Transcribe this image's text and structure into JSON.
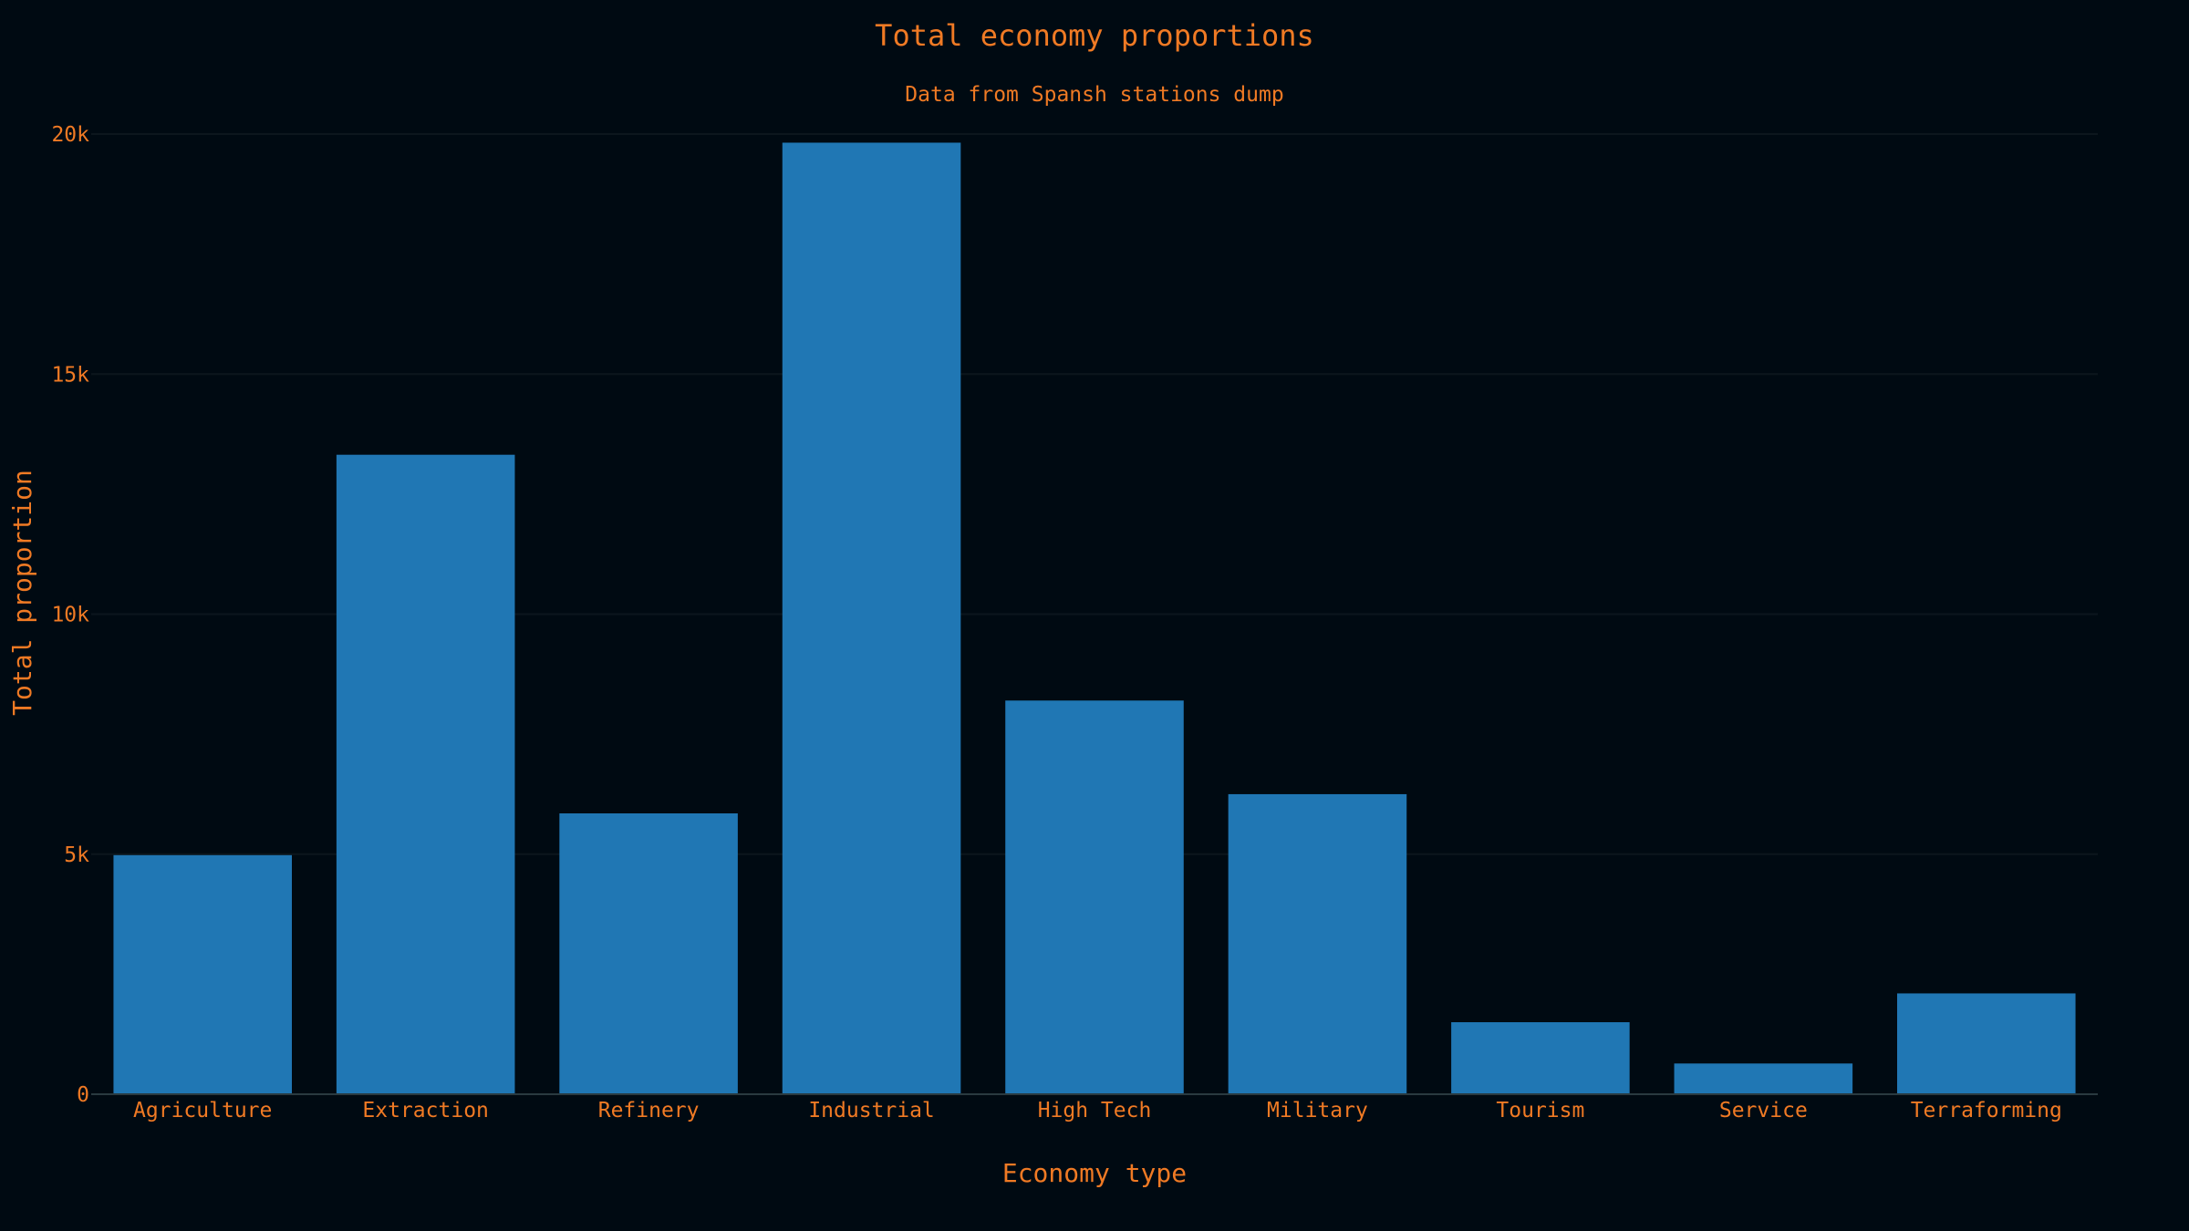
{
  "colors": {
    "background": "#000a12",
    "text": "#f07a24",
    "bar": "#2077b4",
    "grid": "#0c161d",
    "axis_line": "#2a3a40"
  },
  "chart_data": {
    "type": "bar",
    "title": "Total economy proportions",
    "subtitle": "Data from Spansh stations dump",
    "xlabel": "Economy type",
    "ylabel": "Total proportion",
    "ylim": [
      0,
      20000
    ],
    "grid": true,
    "y_ticks": [
      {
        "value": 0,
        "label": "0"
      },
      {
        "value": 5000,
        "label": "5k"
      },
      {
        "value": 10000,
        "label": "10k"
      },
      {
        "value": 15000,
        "label": "15k"
      },
      {
        "value": 20000,
        "label": "20k"
      }
    ],
    "categories": [
      "Agriculture",
      "Extraction",
      "Refinery",
      "Industrial",
      "High Tech",
      "Military",
      "Tourism",
      "Service",
      "Terraforming"
    ],
    "values": [
      4980,
      13320,
      5850,
      19820,
      8200,
      6250,
      1500,
      640,
      2100
    ]
  }
}
